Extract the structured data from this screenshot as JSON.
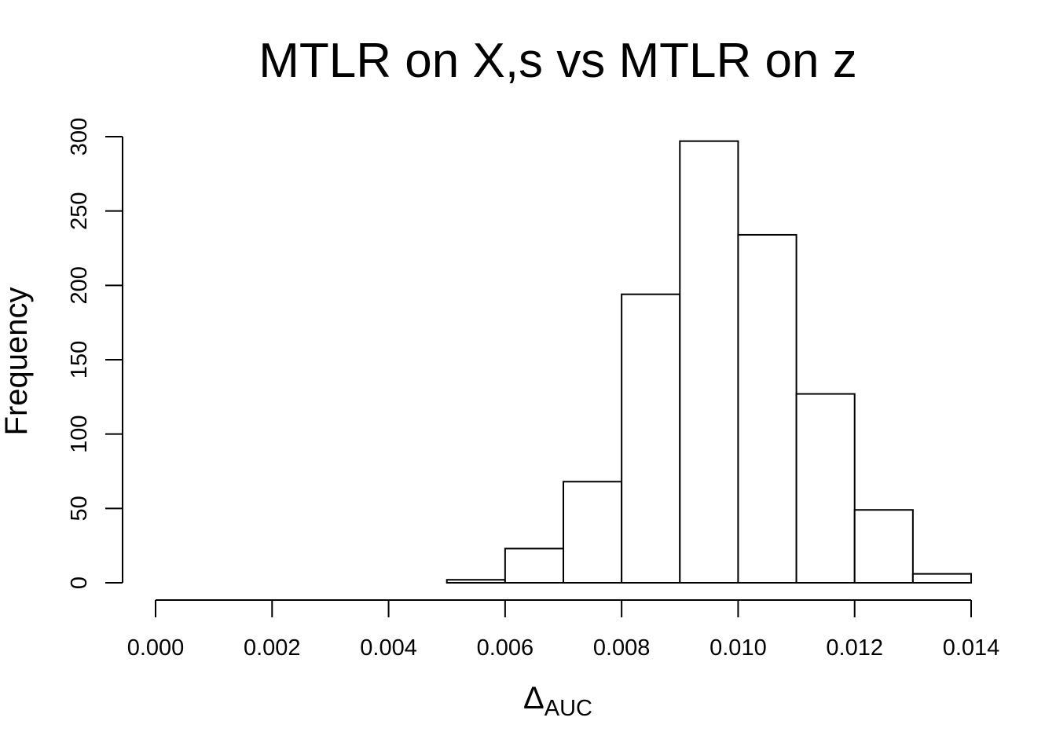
{
  "chart_data": {
    "type": "bar",
    "title": "MTLR on X,s vs MTLR on z",
    "xlabel": "Δ",
    "xlabel_subscript": "AUC",
    "ylabel": "Frequency",
    "bin_edges": [
      0.005,
      0.006,
      0.007,
      0.008,
      0.009,
      0.01,
      0.011,
      0.012,
      0.013,
      0.014
    ],
    "values": [
      2,
      23,
      68,
      194,
      297,
      234,
      127,
      49,
      6
    ],
    "xlim": [
      0.0,
      0.014
    ],
    "ylim": [
      0,
      300
    ],
    "x_ticks": [
      "0.000",
      "0.002",
      "0.004",
      "0.006",
      "0.008",
      "0.010",
      "0.012",
      "0.014"
    ],
    "y_ticks": [
      "0",
      "50",
      "100",
      "150",
      "200",
      "250",
      "300"
    ],
    "grid": false,
    "bar_fill": "#ffffff",
    "bar_stroke": "#000000"
  }
}
